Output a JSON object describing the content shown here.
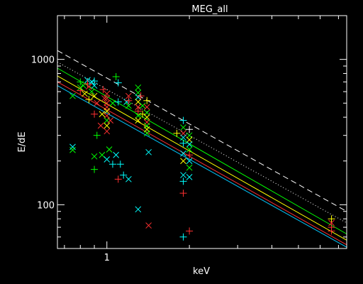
{
  "chart_data": {
    "type": "scatter",
    "title": "MEG_all",
    "xlabel": "keV",
    "ylabel": "E/dE",
    "xscale": "log",
    "yscale": "log",
    "xlim": [
      0.66,
      7.5
    ],
    "ylim": [
      50,
      2000
    ],
    "x_tick_labels": [
      {
        "value": 1,
        "label": "1"
      }
    ],
    "y_tick_labels": [
      {
        "value": 100,
        "label": "100"
      },
      {
        "value": 1000,
        "label": "1000"
      }
    ],
    "background": "#000000",
    "axis_color": "#ffffff",
    "grid": false,
    "legend": "none",
    "lines": [
      {
        "color": "#ffffff",
        "dash": "dashed",
        "points": [
          [
            0.66,
            1150
          ],
          [
            7.5,
            90
          ]
        ]
      },
      {
        "color": "#ffffff",
        "dash": "dotted",
        "points": [
          [
            0.66,
            960
          ],
          [
            7.5,
            75
          ]
        ]
      },
      {
        "color": "#00ff00",
        "dash": "solid",
        "points": [
          [
            0.66,
            870
          ],
          [
            7.5,
            63
          ]
        ]
      },
      {
        "color": "#ffff00",
        "dash": "solid",
        "points": [
          [
            0.66,
            770
          ],
          [
            7.5,
            57
          ]
        ]
      },
      {
        "color": "#ff3030",
        "dash": "solid",
        "points": [
          [
            0.66,
            700
          ],
          [
            7.5,
            53
          ]
        ]
      },
      {
        "color": "#00c8ff",
        "dash": "solid",
        "points": [
          [
            0.66,
            660
          ],
          [
            7.5,
            51
          ]
        ]
      }
    ],
    "points": [
      {
        "x": 0.75,
        "y": 250,
        "marker": "x",
        "color": "#00ffff"
      },
      {
        "x": 0.75,
        "y": 238,
        "marker": "x",
        "color": "#00ff00"
      },
      {
        "x": 0.75,
        "y": 560,
        "marker": "x",
        "color": "#00ff00"
      },
      {
        "x": 0.8,
        "y": 700,
        "marker": "+",
        "color": "#00ff00"
      },
      {
        "x": 0.8,
        "y": 640,
        "marker": "x",
        "color": "#00ff00"
      },
      {
        "x": 0.8,
        "y": 610,
        "marker": "+",
        "color": "#ff3030"
      },
      {
        "x": 0.82,
        "y": 660,
        "marker": "x",
        "color": "#00ff00"
      },
      {
        "x": 0.83,
        "y": 580,
        "marker": "x",
        "color": "#ffff00"
      },
      {
        "x": 0.85,
        "y": 720,
        "marker": "x",
        "color": "#00ffff"
      },
      {
        "x": 0.85,
        "y": 680,
        "marker": "+",
        "color": "#ff3030"
      },
      {
        "x": 0.86,
        "y": 650,
        "marker": "x",
        "color": "#ff3030"
      },
      {
        "x": 0.86,
        "y": 530,
        "marker": "+",
        "color": "#ffff00"
      },
      {
        "x": 0.88,
        "y": 700,
        "marker": "x",
        "color": "#00ffff"
      },
      {
        "x": 0.88,
        "y": 600,
        "marker": "x",
        "color": "#00ff00"
      },
      {
        "x": 0.9,
        "y": 710,
        "marker": "+",
        "color": "#00ffff"
      },
      {
        "x": 0.9,
        "y": 660,
        "marker": "x",
        "color": "#00ffff"
      },
      {
        "x": 0.9,
        "y": 560,
        "marker": "x",
        "color": "#ffff00"
      },
      {
        "x": 0.9,
        "y": 420,
        "marker": "+",
        "color": "#ff3030"
      },
      {
        "x": 0.9,
        "y": 215,
        "marker": "x",
        "color": "#00ff00"
      },
      {
        "x": 0.9,
        "y": 175,
        "marker": "+",
        "color": "#00ff00"
      },
      {
        "x": 0.92,
        "y": 500,
        "marker": "x",
        "color": "#ff3030"
      },
      {
        "x": 0.92,
        "y": 300,
        "marker": "+",
        "color": "#00ff00"
      },
      {
        "x": 0.95,
        "y": 350,
        "marker": "x",
        "color": "#ff3030"
      },
      {
        "x": 0.96,
        "y": 420,
        "marker": "x",
        "color": "#ffff00"
      },
      {
        "x": 0.96,
        "y": 220,
        "marker": "x",
        "color": "#00ff00"
      },
      {
        "x": 0.97,
        "y": 620,
        "marker": "+",
        "color": "#ff3030"
      },
      {
        "x": 0.98,
        "y": 540,
        "marker": "x",
        "color": "#ff3030"
      },
      {
        "x": 1.0,
        "y": 580,
        "marker": "x",
        "color": "#ff3030"
      },
      {
        "x": 1.0,
        "y": 540,
        "marker": "x",
        "color": "#ff3030"
      },
      {
        "x": 1.0,
        "y": 500,
        "marker": "x",
        "color": "#ff3030"
      },
      {
        "x": 1.0,
        "y": 470,
        "marker": "x",
        "color": "#ff3030"
      },
      {
        "x": 1.0,
        "y": 440,
        "marker": "x",
        "color": "#ffff00"
      },
      {
        "x": 1.0,
        "y": 410,
        "marker": "x",
        "color": "#ff3030"
      },
      {
        "x": 1.0,
        "y": 380,
        "marker": "x",
        "color": "#00ff00"
      },
      {
        "x": 1.0,
        "y": 350,
        "marker": "x",
        "color": "#ffff00"
      },
      {
        "x": 1.0,
        "y": 320,
        "marker": "x",
        "color": "#ff3030"
      },
      {
        "x": 1.0,
        "y": 205,
        "marker": "x",
        "color": "#00ffff"
      },
      {
        "x": 1.02,
        "y": 240,
        "marker": "x",
        "color": "#00ff00"
      },
      {
        "x": 1.03,
        "y": 380,
        "marker": "x",
        "color": "#ff3030"
      },
      {
        "x": 1.05,
        "y": 500,
        "marker": "x",
        "color": "#00ff00"
      },
      {
        "x": 1.05,
        "y": 190,
        "marker": "+",
        "color": "#00ffff"
      },
      {
        "x": 1.08,
        "y": 760,
        "marker": "+",
        "color": "#00ff00"
      },
      {
        "x": 1.08,
        "y": 220,
        "marker": "x",
        "color": "#00ffff"
      },
      {
        "x": 1.1,
        "y": 690,
        "marker": "+",
        "color": "#00ffff"
      },
      {
        "x": 1.1,
        "y": 510,
        "marker": "+",
        "color": "#00ffff"
      },
      {
        "x": 1.1,
        "y": 150,
        "marker": "+",
        "color": "#ff3030"
      },
      {
        "x": 1.12,
        "y": 190,
        "marker": "+",
        "color": "#00ffff"
      },
      {
        "x": 1.15,
        "y": 160,
        "marker": "+",
        "color": "#00ffff"
      },
      {
        "x": 1.18,
        "y": 510,
        "marker": "x",
        "color": "#00ffff"
      },
      {
        "x": 1.2,
        "y": 560,
        "marker": "x",
        "color": "#ff3030"
      },
      {
        "x": 1.2,
        "y": 520,
        "marker": "+",
        "color": "#ff3030"
      },
      {
        "x": 1.2,
        "y": 480,
        "marker": "x",
        "color": "#00ff00"
      },
      {
        "x": 1.2,
        "y": 150,
        "marker": "x",
        "color": "#00ffff"
      },
      {
        "x": 1.3,
        "y": 640,
        "marker": "x",
        "color": "#00ff00"
      },
      {
        "x": 1.3,
        "y": 590,
        "marker": "x",
        "color": "#00ff00"
      },
      {
        "x": 1.3,
        "y": 550,
        "marker": "x",
        "color": "#00ffff"
      },
      {
        "x": 1.3,
        "y": 510,
        "marker": "x",
        "color": "#ffff00"
      },
      {
        "x": 1.3,
        "y": 470,
        "marker": "x",
        "color": "#ff3030"
      },
      {
        "x": 1.3,
        "y": 440,
        "marker": "+",
        "color": "#ff3030"
      },
      {
        "x": 1.3,
        "y": 410,
        "marker": "x",
        "color": "#00ff00"
      },
      {
        "x": 1.3,
        "y": 380,
        "marker": "x",
        "color": "#ffff00"
      },
      {
        "x": 1.3,
        "y": 93,
        "marker": "x",
        "color": "#00ffff"
      },
      {
        "x": 1.33,
        "y": 560,
        "marker": "+",
        "color": "#ff3030"
      },
      {
        "x": 1.35,
        "y": 480,
        "marker": "x",
        "color": "#00ff00"
      },
      {
        "x": 1.35,
        "y": 420,
        "marker": "+",
        "color": "#ffff00"
      },
      {
        "x": 1.4,
        "y": 520,
        "marker": "+",
        "color": "#ffff00"
      },
      {
        "x": 1.4,
        "y": 470,
        "marker": "x",
        "color": "#ff3030"
      },
      {
        "x": 1.4,
        "y": 430,
        "marker": "x",
        "color": "#00ff00"
      },
      {
        "x": 1.4,
        "y": 400,
        "marker": "x",
        "color": "#ffff00"
      },
      {
        "x": 1.4,
        "y": 370,
        "marker": "x",
        "color": "#ff3030"
      },
      {
        "x": 1.4,
        "y": 350,
        "marker": "x",
        "color": "#00ff00"
      },
      {
        "x": 1.4,
        "y": 330,
        "marker": "x",
        "color": "#ffff00"
      },
      {
        "x": 1.4,
        "y": 310,
        "marker": "x",
        "color": "#00ff00"
      },
      {
        "x": 1.42,
        "y": 230,
        "marker": "x",
        "color": "#00ffff"
      },
      {
        "x": 1.42,
        "y": 72,
        "marker": "x",
        "color": "#ff3030"
      },
      {
        "x": 1.8,
        "y": 310,
        "marker": "+",
        "color": "#ffff00"
      },
      {
        "x": 1.9,
        "y": 380,
        "marker": "+",
        "color": "#00ffff"
      },
      {
        "x": 1.9,
        "y": 340,
        "marker": "x",
        "color": "#00ff00"
      },
      {
        "x": 1.9,
        "y": 310,
        "marker": "x",
        "color": "#ff3030"
      },
      {
        "x": 1.9,
        "y": 290,
        "marker": "x",
        "color": "#00ffff"
      },
      {
        "x": 1.9,
        "y": 265,
        "marker": "+",
        "color": "#00ffff"
      },
      {
        "x": 1.9,
        "y": 225,
        "marker": "x",
        "color": "#00ffff"
      },
      {
        "x": 1.9,
        "y": 200,
        "marker": "x",
        "color": "#ffff00"
      },
      {
        "x": 1.9,
        "y": 160,
        "marker": "x",
        "color": "#00ffff"
      },
      {
        "x": 1.9,
        "y": 145,
        "marker": "+",
        "color": "#00ffff"
      },
      {
        "x": 1.9,
        "y": 120,
        "marker": "+",
        "color": "#ff3030"
      },
      {
        "x": 1.9,
        "y": 60,
        "marker": "+",
        "color": "#00ffff"
      },
      {
        "x": 2.0,
        "y": 330,
        "marker": "+",
        "color": "#ffffff"
      },
      {
        "x": 2.0,
        "y": 300,
        "marker": "x",
        "color": "#00ff00"
      },
      {
        "x": 2.0,
        "y": 280,
        "marker": "x",
        "color": "#ffff00"
      },
      {
        "x": 2.0,
        "y": 260,
        "marker": "x",
        "color": "#00ffff"
      },
      {
        "x": 2.0,
        "y": 240,
        "marker": "x",
        "color": "#00ff00"
      },
      {
        "x": 2.0,
        "y": 220,
        "marker": "+",
        "color": "#ff3030"
      },
      {
        "x": 2.0,
        "y": 200,
        "marker": "x",
        "color": "#00ffff"
      },
      {
        "x": 2.0,
        "y": 180,
        "marker": "x",
        "color": "#00ff00"
      },
      {
        "x": 2.0,
        "y": 155,
        "marker": "x",
        "color": "#00ffff"
      },
      {
        "x": 2.0,
        "y": 66,
        "marker": "+",
        "color": "#ff3030"
      },
      {
        "x": 6.6,
        "y": 80,
        "marker": "+",
        "color": "#ffff00"
      },
      {
        "x": 6.6,
        "y": 75,
        "marker": "x",
        "color": "#ff3030"
      },
      {
        "x": 6.6,
        "y": 70,
        "marker": "+",
        "color": "#ff3030"
      },
      {
        "x": 6.6,
        "y": 66,
        "marker": "+",
        "color": "#ff3030"
      }
    ]
  }
}
